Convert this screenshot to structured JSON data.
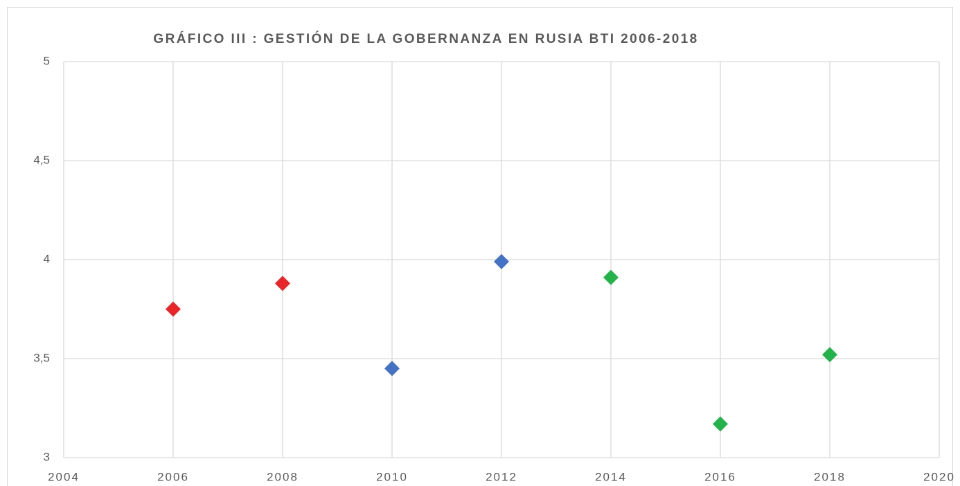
{
  "chart_data": {
    "type": "scatter",
    "title": "GRÁFICO III : GESTIÓN DE LA GOBERNANZA EN RUSIA BTI 2006-2018",
    "series": [
      {
        "color": "#e8262a",
        "x": [
          2006,
          2008
        ],
        "values": [
          3.75,
          3.88
        ]
      },
      {
        "color": "#4472c4",
        "x": [
          2010,
          2012
        ],
        "values": [
          3.45,
          3.99
        ]
      },
      {
        "color": "#24b24b",
        "x": [
          2014,
          2016,
          2018
        ],
        "values": [
          3.91,
          3.17,
          3.52
        ]
      }
    ],
    "xlim": [
      2004,
      2020
    ],
    "xticks": [
      2004,
      2006,
      2008,
      2010,
      2012,
      2014,
      2016,
      2018,
      2020
    ],
    "ylim": [
      3,
      5
    ],
    "yticks": [
      3,
      {
        "value": 3.5,
        "label": "3,5"
      },
      4,
      {
        "value": 4.5,
        "label": "4,5"
      },
      5
    ],
    "grid": true
  }
}
